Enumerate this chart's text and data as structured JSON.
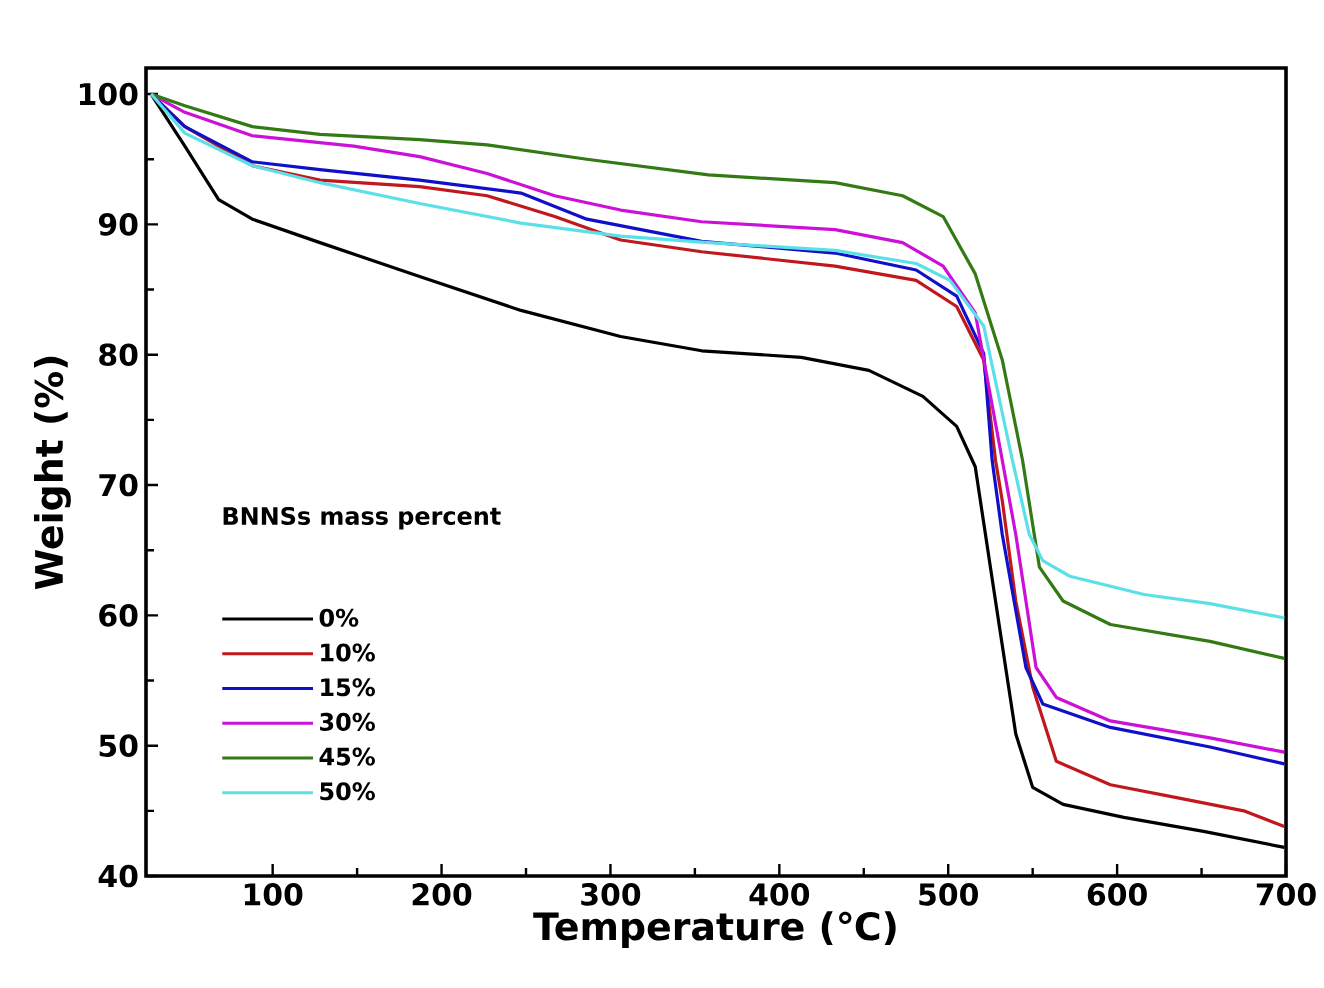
{
  "chart_data": {
    "type": "line",
    "xlabel": "Temperature (℃)",
    "ylabel": "Weight (%)",
    "legend_title": "BNNSs mass percent",
    "legend": "bottom left",
    "grid": false,
    "marker": "none",
    "line_style": "solid",
    "xlim": [
      25,
      700
    ],
    "ylim": [
      40,
      102
    ],
    "xticks": [
      100,
      200,
      300,
      400,
      500,
      600,
      700
    ],
    "yticks": [
      40,
      50,
      60,
      70,
      80,
      90,
      100
    ],
    "series": [
      {
        "name": "0%",
        "color": "#000000",
        "x": [
          28,
          48,
          68,
          88,
          128,
          187,
          247,
          306,
          354,
          413,
          453,
          485,
          505,
          516,
          528,
          540,
          550,
          568,
          604,
          652,
          699
        ],
        "values": [
          100,
          96,
          91.9,
          90.4,
          88.6,
          86,
          83.4,
          81.4,
          80.3,
          79.8,
          78.8,
          76.8,
          74.5,
          71.4,
          61.1,
          50.9,
          46.8,
          45.5,
          44.5,
          43.4,
          42.2
        ]
      },
      {
        "name": "10%",
        "color": "#c0181c",
        "x": [
          28,
          48,
          88,
          128,
          187,
          227,
          267,
          306,
          354,
          433,
          481,
          505,
          521,
          528,
          532,
          540,
          550,
          564,
          596,
          636,
          675,
          699
        ],
        "values": [
          100,
          97.5,
          94.5,
          93.4,
          92.9,
          92.2,
          90.6,
          88.8,
          87.9,
          86.8,
          85.7,
          83.7,
          79.6,
          71.9,
          68.8,
          61.1,
          54.5,
          48.8,
          47,
          46,
          45,
          43.8
        ]
      },
      {
        "name": "15%",
        "color": "#1010c8",
        "x": [
          28,
          48,
          88,
          128,
          187,
          247,
          286,
          354,
          433,
          481,
          505,
          521,
          526,
          532,
          546,
          556,
          596,
          655,
          699
        ],
        "values": [
          100,
          97.5,
          94.8,
          94.2,
          93.4,
          92.4,
          90.4,
          88.7,
          87.8,
          86.5,
          84.5,
          80.1,
          71.9,
          66.2,
          56,
          53.2,
          51.4,
          49.9,
          48.6
        ]
      },
      {
        "name": "30%",
        "color": "#cc10d8",
        "x": [
          28,
          48,
          88,
          148,
          187,
          227,
          267,
          306,
          354,
          433,
          473,
          497,
          516,
          532,
          540,
          552,
          564,
          596,
          655,
          699
        ],
        "values": [
          100,
          98.6,
          96.8,
          96,
          95.2,
          93.9,
          92.2,
          91.1,
          90.2,
          89.6,
          88.6,
          86.8,
          83.2,
          71.9,
          66.2,
          56,
          53.7,
          51.9,
          50.6,
          49.5
        ]
      },
      {
        "name": "45%",
        "color": "#347a14",
        "x": [
          28,
          48,
          88,
          128,
          187,
          227,
          286,
          358,
          433,
          473,
          497,
          516,
          532,
          544,
          554,
          568,
          596,
          655,
          699
        ],
        "values": [
          100,
          99.1,
          97.5,
          96.9,
          96.5,
          96.1,
          95,
          93.8,
          93.2,
          92.2,
          90.6,
          86.2,
          79.6,
          71.9,
          63.7,
          61.1,
          59.3,
          58,
          56.7
        ]
      },
      {
        "name": "50%",
        "color": "#5ce0e8",
        "x": [
          28,
          48,
          88,
          128,
          187,
          247,
          306,
          358,
          433,
          481,
          501,
          521,
          538,
          548,
          556,
          572,
          616,
          655,
          699
        ],
        "values": [
          100,
          97,
          94.5,
          93.2,
          91.6,
          90.1,
          89.1,
          88.6,
          88,
          87,
          85.7,
          82.2,
          71.9,
          66.2,
          64.2,
          63,
          61.6,
          60.9,
          59.8
        ]
      }
    ]
  }
}
